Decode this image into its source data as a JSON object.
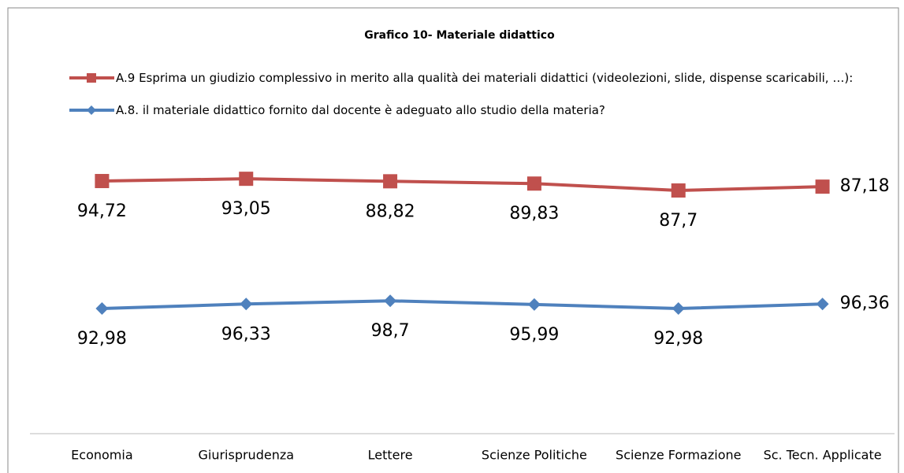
{
  "chart_data": {
    "type": "line",
    "stacked": true,
    "legend_order": "reversed",
    "title": "Grafico 10- Materiale didattico",
    "categories": [
      "Economia",
      "Giurisprudenza",
      "Lettere",
      "Scienze Politiche",
      "Scienze Formazione",
      "Sc. Tecn. Applicate"
    ],
    "series": [
      {
        "name": "A.8. il materiale didattico fornito dal docente è adeguato allo studio della materia?",
        "color": "#4f81bd",
        "marker": "diamond",
        "values": [
          92.98,
          96.33,
          98.7,
          95.99,
          92.98,
          96.36
        ],
        "value_labels": [
          "92,98",
          "96,33",
          "98,7",
          "95,99",
          "92,98",
          "96,36"
        ]
      },
      {
        "name": "A.9  Esprima un giudizio complessivo in merito alla qualità dei materiali didattici (videolezioni, slide, dispense scaricabili, …):",
        "color": "#c0504d",
        "marker": "square",
        "values": [
          94.72,
          93.05,
          88.82,
          89.83,
          87.7,
          87.18
        ],
        "value_labels": [
          "94,72",
          "93,05",
          "88,82",
          "89,83",
          "87,7",
          "87,18"
        ]
      }
    ],
    "ylim": [
      0,
      200
    ]
  }
}
